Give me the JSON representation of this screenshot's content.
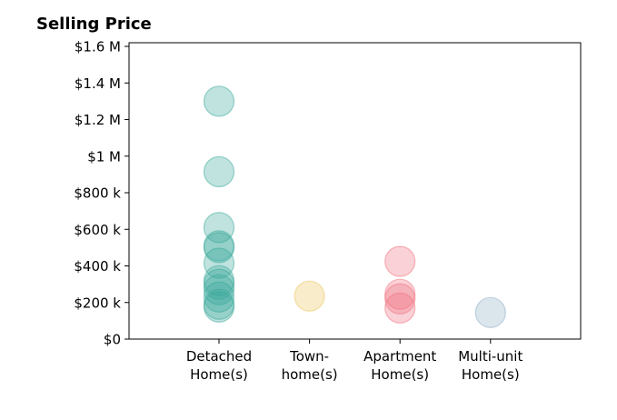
{
  "chart_data": {
    "type": "scatter",
    "title": "Selling Price",
    "xlabel": "",
    "ylabel": "",
    "categories": [
      "Detached\nHome(s)",
      "Town-\nhome(s)",
      "Apartment\nHome(s)",
      "Multi-unit\nHome(s)"
    ],
    "ylim": [
      0,
      1620000
    ],
    "yticks": [
      0,
      200000,
      400000,
      600000,
      800000,
      1000000,
      1200000,
      1400000,
      1600000
    ],
    "ytick_labels": [
      "$0",
      "$200 k",
      "$400 k",
      "$600 k",
      "$800 k",
      "$1 M",
      "$1.2 M",
      "$1.4 M",
      "$1.6 M"
    ],
    "grid": false,
    "series": [
      {
        "category": "Detached\nHome(s)",
        "color": "#3aa99a",
        "values": [
          1300000,
          915000,
          610000,
          510000,
          500000,
          415000,
          320000,
          300000,
          270000,
          230000,
          190000,
          175000
        ]
      },
      {
        "category": "Town-\nhome(s)",
        "color": "#ebc35b",
        "values": [
          235000
        ]
      },
      {
        "category": "Apartment\nHome(s)",
        "color": "#f0717e",
        "values": [
          425000,
          245000,
          220000,
          170000
        ]
      },
      {
        "category": "Multi-unit\nHome(s)",
        "color": "#8eaec4",
        "values": [
          145000
        ]
      }
    ]
  }
}
